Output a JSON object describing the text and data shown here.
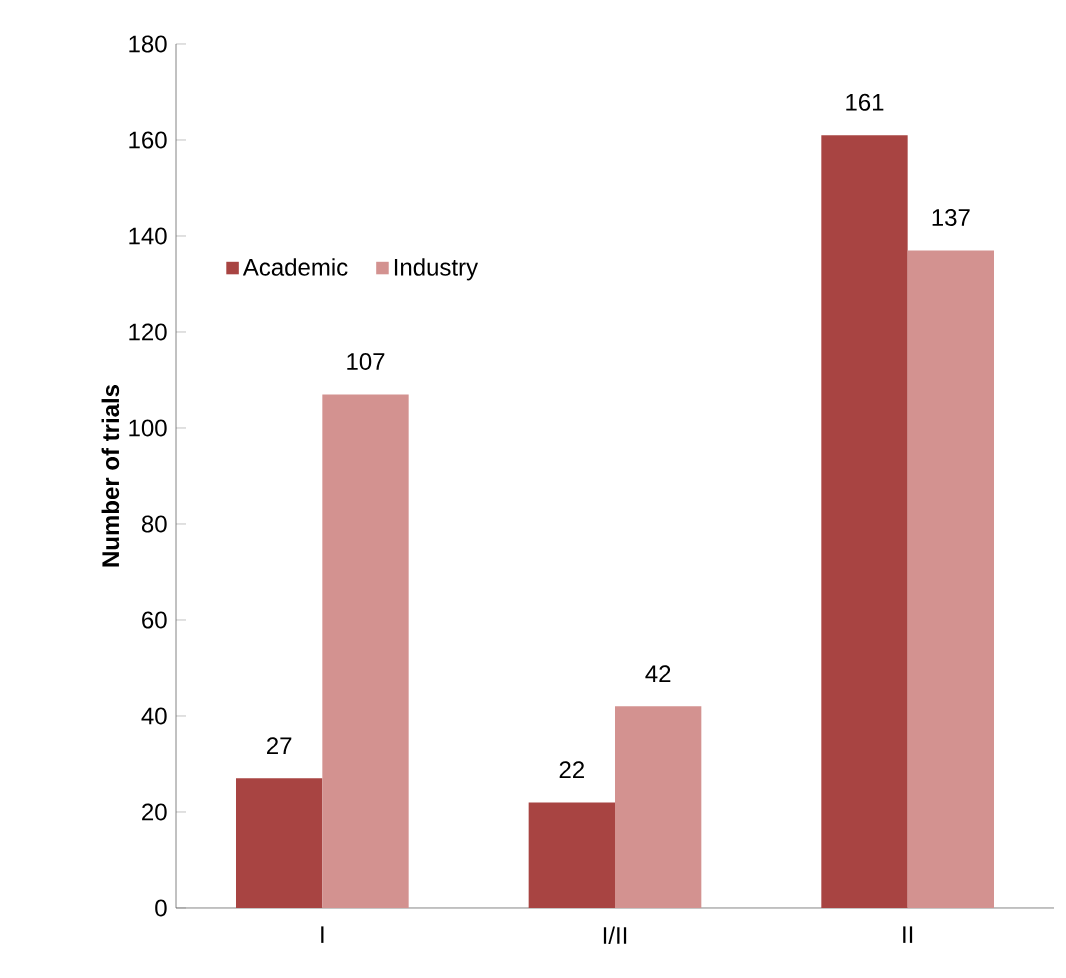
{
  "chart_data": {
    "type": "bar",
    "ylabel": "Number of trials",
    "categories": [
      "I",
      "I/II",
      "II"
    ],
    "series": [
      {
        "name": "Academic",
        "color": "#a84442",
        "values": [
          27,
          22,
          161
        ]
      },
      {
        "name": "Industry",
        "color": "#d39290",
        "values": [
          107,
          42,
          137
        ]
      }
    ],
    "ylim": [
      0,
      180
    ],
    "yticks": [
      0,
      20,
      40,
      60,
      80,
      100,
      120,
      140,
      160,
      180
    ],
    "grid": false,
    "legend": "top left",
    "data_labels": true
  }
}
